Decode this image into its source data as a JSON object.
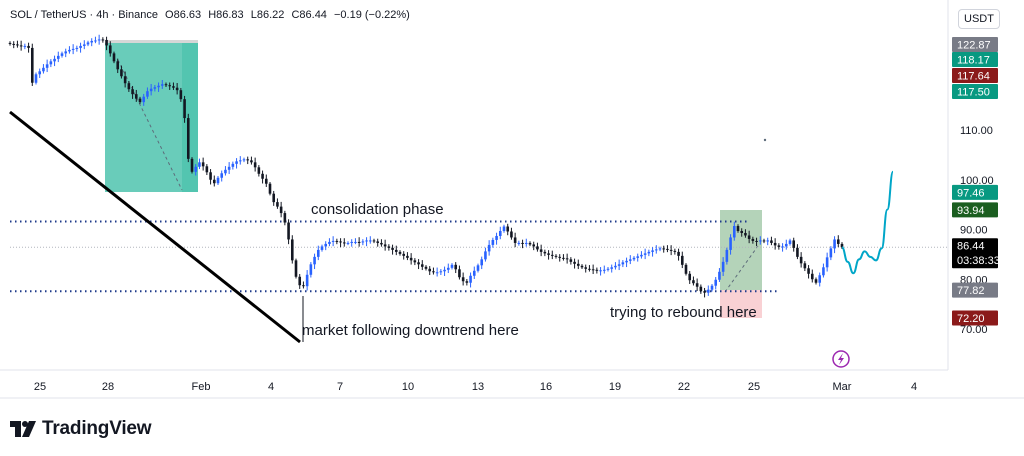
{
  "header": {
    "symbol": "SOL / TetherUS · 4h · Binance",
    "open": "O86.63",
    "high": "H86.83",
    "low": "L86.22",
    "close": "C86.44",
    "change": "−0.19 (−0.22%)"
  },
  "currency": "USDT",
  "brand": {
    "name": "TradingView"
  },
  "colors": {
    "up": "#2962ff",
    "down": "#131722",
    "tp_zone": "#2ab79d",
    "sl_zone": "#bdbdbd",
    "sl_red": "#f7c6c9",
    "dotted": "#1e3a8a",
    "forecast": "#00a6c8",
    "label_gray": "#787b86",
    "label_green": "#089981",
    "label_darkred": "#8b1a1a",
    "label_darkgreen": "#1b5e20",
    "label_black": "#000000"
  },
  "chart_data": {
    "type": "candlestick",
    "y_axis": {
      "ticks": [
        70,
        80,
        90,
        100,
        110
      ],
      "tick_labels": [
        "70.00",
        "80.00",
        "90.00",
        "100.00",
        "110.00"
      ],
      "scale": "linear"
    },
    "x_axis": {
      "labels": [
        "25",
        "28",
        "Feb",
        "4",
        "7",
        "10",
        "13",
        "16",
        "19",
        "22",
        "25",
        "Mar",
        "4"
      ]
    },
    "price_labels": [
      {
        "value": 122.87,
        "text": "122.87",
        "style": "gray"
      },
      {
        "value": 118.17,
        "text": "118.17",
        "style": "green"
      },
      {
        "value": 117.64,
        "text": "117.64",
        "style": "darkred"
      },
      {
        "value": 117.5,
        "text": "117.50",
        "style": "green"
      },
      {
        "value": 97.46,
        "text": "97.46",
        "style": "green"
      },
      {
        "value": 93.94,
        "text": "93.94",
        "style": "darkgreen"
      },
      {
        "value": 86.44,
        "text": "86.44",
        "style": "black",
        "subtext": "03:38:33"
      },
      {
        "value": 77.82,
        "text": "77.82",
        "style": "gray"
      },
      {
        "value": 72.2,
        "text": "72.20",
        "style": "darkred"
      }
    ],
    "current_price": 86.44,
    "levels": {
      "resistance": 91.6,
      "support": 77.6
    },
    "annotations": [
      {
        "text": "consolidation phase"
      },
      {
        "text": "trying to rebound here"
      },
      {
        "text": "market following downtrend here"
      }
    ],
    "closes": [
      127.3,
      127.2,
      127.0,
      126.8,
      126.9,
      126.5,
      119.5,
      121.2,
      121.8,
      122.5,
      123.2,
      123.8,
      124.3,
      124.9,
      125.4,
      125.8,
      126.1,
      126.3,
      126.5,
      126.9,
      127.2,
      127.6,
      127.9,
      128.0,
      128.2,
      128.1,
      127.0,
      125.4,
      123.8,
      122.2,
      120.8,
      119.4,
      118.2,
      117.2,
      116.3,
      115.6,
      116.7,
      117.8,
      118.3,
      118.6,
      118.9,
      119.2,
      119.0,
      118.8,
      118.5,
      118.0,
      116.2,
      112.4,
      104.2,
      101.6,
      102.6,
      103.5,
      102.7,
      101.5,
      100.0,
      99.3,
      100.4,
      101.3,
      102.0,
      102.6,
      103.2,
      103.7,
      103.9,
      104.1,
      103.9,
      103.5,
      102.5,
      101.2,
      100.2,
      99.2,
      97.2,
      95.5,
      94.6,
      93.3,
      91.4,
      88.0,
      83.8,
      80.5,
      78.8,
      78.6,
      80.9,
      83.0,
      84.5,
      85.9,
      86.6,
      87.1,
      87.5,
      87.7,
      87.6,
      87.4,
      87.2,
      87.3,
      87.5,
      87.5,
      87.4,
      87.6,
      87.8,
      87.8,
      87.6,
      87.3,
      87.0,
      86.6,
      86.3,
      85.9,
      85.5,
      85.1,
      84.7,
      84.3,
      83.8,
      83.4,
      83.0,
      82.5,
      82.1,
      81.6,
      81.4,
      81.4,
      81.6,
      81.9,
      82.3,
      82.9,
      82.0,
      80.4,
      79.6,
      79.3,
      80.7,
      81.7,
      82.8,
      84.0,
      85.6,
      86.9,
      87.9,
      88.7,
      89.7,
      90.6,
      89.6,
      88.4,
      87.3,
      87.3,
      87.2,
      87.3,
      87.0,
      86.6,
      86.0,
      85.5,
      85.2,
      84.9,
      84.7,
      84.5,
      84.3,
      84.2,
      84.0,
      83.5,
      83.1,
      82.7,
      82.4,
      82.1,
      82.0,
      81.9,
      81.7,
      81.8,
      81.9,
      82.1,
      82.4,
      82.7,
      83.0,
      83.4,
      83.7,
      84.0,
      84.3,
      84.6,
      84.9,
      85.2,
      85.5,
      85.8,
      86.0,
      86.2,
      86.1,
      85.9,
      85.7,
      85.5,
      84.7,
      82.9,
      81.1,
      79.8,
      79.2,
      78.5,
      77.6,
      77.3,
      77.9,
      78.7,
      79.9,
      81.5,
      83.5,
      85.9,
      88.4,
      90.7,
      89.7,
      89.3,
      88.8,
      88.1,
      87.7,
      87.6,
      87.8,
      87.6,
      87.8,
      87.3,
      86.8,
      86.5,
      86.6,
      87.1,
      87.8,
      86.3,
      84.5,
      83.2,
      82.2,
      81.1,
      80.0,
      79.3,
      80.8,
      82.4,
      84.4,
      86.2,
      88.0,
      87.1,
      86.44
    ],
    "forecast_path": [
      86.4,
      83.5,
      81.2,
      84.0,
      85.6,
      84.5,
      83.8,
      86.2,
      94.0,
      101.6
    ]
  }
}
